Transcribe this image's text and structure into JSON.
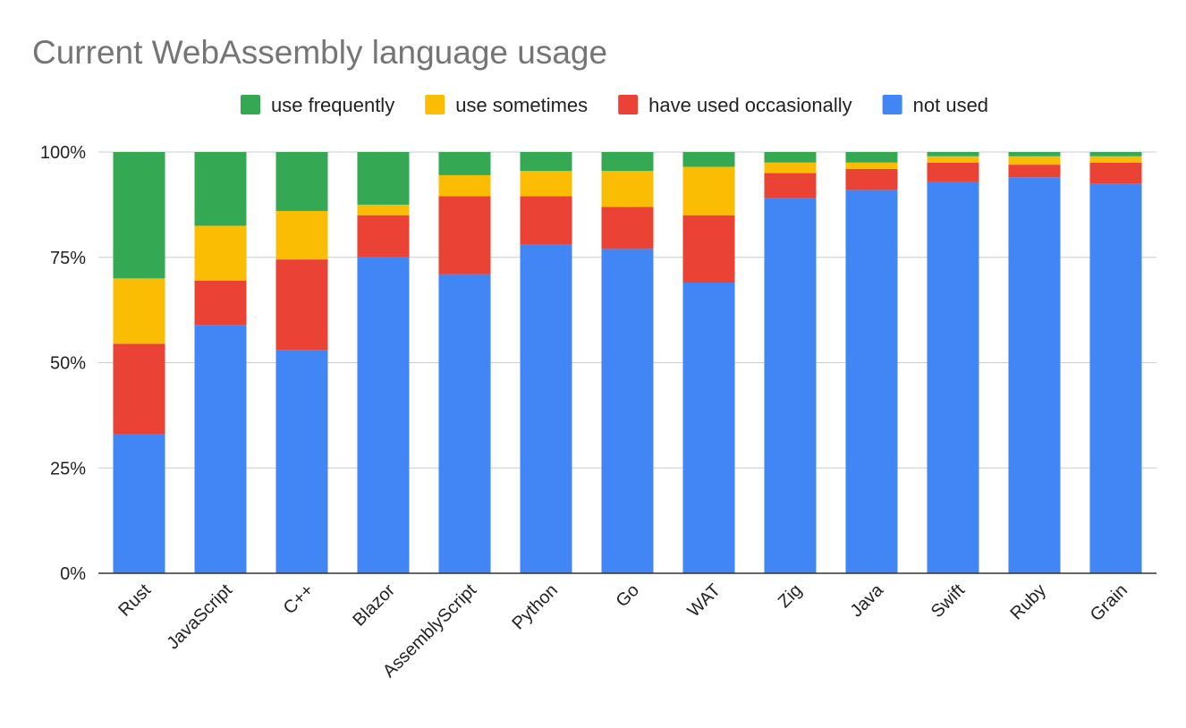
{
  "chart_data": {
    "type": "bar",
    "stacked": true,
    "percent": true,
    "title": "Current WebAssembly language usage",
    "xlabel": "",
    "ylabel": "",
    "ylim": [
      0,
      100
    ],
    "yticks": [
      0,
      25,
      50,
      75,
      100
    ],
    "ytick_labels": [
      "0%",
      "25%",
      "50%",
      "75%",
      "100%"
    ],
    "grid": true,
    "legend_position": "top",
    "categories": [
      "Rust",
      "JavaScript",
      "C++",
      "Blazor",
      "AssemblyScript",
      "Python",
      "Go",
      "WAT",
      "Zig",
      "Java",
      "Swift",
      "Ruby",
      "Grain"
    ],
    "series": [
      {
        "name": "not used",
        "color": "#4285f4",
        "values": [
          33,
          59,
          53,
          75,
          71,
          78,
          77,
          69,
          89,
          91,
          93,
          94,
          92.5
        ]
      },
      {
        "name": "have used occasionally",
        "color": "#ea4335",
        "values": [
          21.5,
          10.5,
          21.5,
          10,
          18.5,
          11.5,
          10,
          16,
          6,
          5,
          4.5,
          3,
          5
        ]
      },
      {
        "name": "use sometimes",
        "color": "#fbbc04",
        "values": [
          15.5,
          13,
          11.5,
          2.5,
          5,
          6,
          8.5,
          11.5,
          2.5,
          1.5,
          1.5,
          2,
          1.5
        ]
      },
      {
        "name": "use frequently",
        "color": "#34a853",
        "values": [
          30,
          17.5,
          14,
          12.5,
          5.5,
          4.5,
          4.5,
          3.5,
          2.5,
          2.5,
          1,
          1,
          1
        ]
      }
    ],
    "legend_order": [
      "use frequently",
      "use sometimes",
      "have used occasionally",
      "not used"
    ]
  }
}
